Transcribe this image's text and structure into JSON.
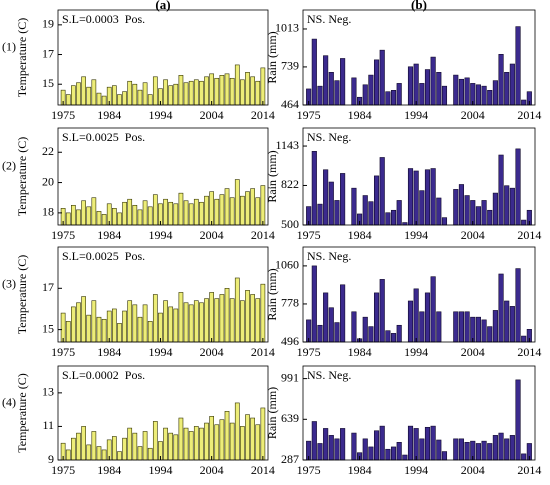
{
  "chart_data": [
    {
      "type": "bar",
      "title": "(a)",
      "label": "(1)",
      "ylabel": "Temperature (C)",
      "annotation": "S.L=0.0003  Pos.",
      "color": "#eded78",
      "edge": "#333300",
      "x": [
        1975,
        1976,
        1977,
        1978,
        1979,
        1980,
        1981,
        1982,
        1983,
        1984,
        1985,
        1986,
        1987,
        1988,
        1989,
        1990,
        1991,
        1992,
        1993,
        1994,
        1995,
        1996,
        1997,
        1998,
        1999,
        2000,
        2001,
        2002,
        2003,
        2004,
        2005,
        2006,
        2007,
        2008,
        2009,
        2010,
        2011,
        2012,
        2013,
        2014
      ],
      "values": [
        14.6,
        14.3,
        14.9,
        15.1,
        15.5,
        14.8,
        15.3,
        14.4,
        14.2,
        14.8,
        14.9,
        14.3,
        14.5,
        15.2,
        15.0,
        14.6,
        15.1,
        14.3,
        15.5,
        14.7,
        15.3,
        14.9,
        15.0,
        15.6,
        15.1,
        15.2,
        15.3,
        15.2,
        15.5,
        15.7,
        15.4,
        15.6,
        15.7,
        15.4,
        16.3,
        15.3,
        15.8,
        15.5,
        15.2,
        16.1
      ],
      "xlim": [
        1974,
        2015
      ],
      "xticks": [
        1975,
        1984,
        1994,
        2004,
        2014
      ],
      "ylim": [
        13.6,
        20
      ],
      "yticks": [
        15,
        17,
        19
      ]
    },
    {
      "type": "bar",
      "label": "(2)",
      "ylabel": "Temperature (C)",
      "annotation": "S.L=0.0025  Pos.",
      "color": "#eded78",
      "edge": "#333300",
      "x": [
        1975,
        1976,
        1977,
        1978,
        1979,
        1980,
        1981,
        1982,
        1983,
        1984,
        1985,
        1986,
        1987,
        1988,
        1989,
        1990,
        1991,
        1992,
        1993,
        1994,
        1995,
        1996,
        1997,
        1998,
        1999,
        2000,
        2001,
        2002,
        2003,
        2004,
        2005,
        2006,
        2007,
        2008,
        2009,
        2010,
        2011,
        2012,
        2013,
        2014
      ],
      "values": [
        18.3,
        18.0,
        18.5,
        18.2,
        18.8,
        18.4,
        19.0,
        18.1,
        17.9,
        18.6,
        18.3,
        18.0,
        18.7,
        18.9,
        18.5,
        18.2,
        18.8,
        18.4,
        19.2,
        18.6,
        18.9,
        18.7,
        18.6,
        19.3,
        18.8,
        18.6,
        18.9,
        18.7,
        19.1,
        19.4,
        18.9,
        19.2,
        19.6,
        19.0,
        20.2,
        19.1,
        19.4,
        19.6,
        19.0,
        19.8
      ],
      "xlim": [
        1974,
        2015
      ],
      "xticks": [
        1975,
        1984,
        1994,
        2004,
        2014
      ],
      "ylim": [
        17.2,
        23.6
      ],
      "yticks": [
        18,
        20,
        22
      ]
    },
    {
      "type": "bar",
      "label": "(3)",
      "ylabel": "Temperature (C)",
      "annotation": "S.L=0.0025  Pos.",
      "color": "#eded78",
      "edge": "#333300",
      "x": [
        1975,
        1976,
        1977,
        1978,
        1979,
        1980,
        1981,
        1982,
        1983,
        1984,
        1985,
        1986,
        1987,
        1988,
        1989,
        1990,
        1991,
        1992,
        1993,
        1994,
        1995,
        1996,
        1997,
        1998,
        1999,
        2000,
        2001,
        2002,
        2003,
        2004,
        2005,
        2006,
        2007,
        2008,
        2009,
        2010,
        2011,
        2012,
        2013,
        2014
      ],
      "values": [
        15.8,
        15.4,
        16.1,
        16.3,
        16.6,
        15.7,
        16.4,
        15.6,
        15.5,
        15.9,
        16.0,
        15.3,
        15.9,
        16.4,
        16.2,
        15.6,
        16.2,
        15.4,
        16.7,
        15.8,
        16.4,
        16.1,
        16.0,
        16.8,
        16.3,
        16.2,
        16.4,
        16.3,
        16.5,
        16.8,
        16.5,
        16.7,
        17.0,
        16.5,
        17.5,
        16.4,
        16.9,
        16.7,
        16.5,
        17.2
      ],
      "xlim": [
        1974,
        2015
      ],
      "xticks": [
        1975,
        1984,
        1994,
        2004,
        2014
      ],
      "ylim": [
        14.4,
        19
      ],
      "yticks": [
        15,
        17
      ]
    },
    {
      "type": "bar",
      "label": "(4)",
      "ylabel": "Temperature (C)",
      "annotation": "S.L=0.0002  Pos.",
      "color": "#eded78",
      "edge": "#333300",
      "x": [
        1975,
        1976,
        1977,
        1978,
        1979,
        1980,
        1981,
        1982,
        1983,
        1984,
        1985,
        1986,
        1987,
        1988,
        1989,
        1990,
        1991,
        1992,
        1993,
        1994,
        1995,
        1996,
        1997,
        1998,
        1999,
        2000,
        2001,
        2002,
        2003,
        2004,
        2005,
        2006,
        2007,
        2008,
        2009,
        2010,
        2011,
        2012,
        2013,
        2014
      ],
      "values": [
        10.0,
        9.6,
        10.3,
        10.6,
        11.0,
        9.9,
        10.7,
        9.8,
        9.6,
        10.2,
        10.4,
        9.5,
        10.3,
        10.9,
        10.6,
        9.8,
        10.7,
        9.7,
        11.3,
        10.1,
        10.9,
        10.6,
        10.5,
        11.5,
        10.9,
        10.7,
        11.0,
        10.9,
        11.2,
        11.6,
        11.1,
        11.4,
        11.9,
        11.2,
        12.4,
        11.0,
        11.7,
        11.5,
        11.1,
        12.1
      ],
      "xlim": [
        1974,
        2015
      ],
      "xticks": [
        1975,
        1984,
        1994,
        2004,
        2014
      ],
      "ylim": [
        9,
        14.6
      ],
      "yticks": [
        9,
        11,
        13
      ]
    },
    {
      "type": "bar",
      "title": "(b)",
      "ylabel": "Rain (mm)",
      "annotation": "NS. Neg.",
      "color": "#3b2a8e",
      "edge": "#10082a",
      "x": [
        1975,
        1976,
        1977,
        1978,
        1979,
        1980,
        1981,
        1982,
        1983,
        1984,
        1985,
        1986,
        1987,
        1988,
        1989,
        1990,
        1991,
        1992,
        1993,
        1994,
        1995,
        1996,
        1997,
        1998,
        1999,
        2000,
        2001,
        2002,
        2003,
        2004,
        2005,
        2006,
        2007,
        2008,
        2009,
        2010,
        2011,
        2012,
        2013,
        2014
      ],
      "values": [
        580,
        940,
        600,
        820,
        700,
        640,
        800,
        null,
        660,
        520,
        610,
        680,
        790,
        860,
        560,
        570,
        620,
        null,
        740,
        760,
        620,
        720,
        810,
        700,
        600,
        null,
        680,
        650,
        660,
        620,
        610,
        600,
        570,
        640,
        830,
        700,
        760,
        1030,
        500,
        560
      ],
      "xlim": [
        1974,
        2015
      ],
      "xticks": [
        1975,
        1984,
        1994,
        2004,
        2014
      ],
      "ylim": [
        464,
        1150
      ],
      "yticks": [
        464,
        739,
        1013
      ]
    },
    {
      "type": "bar",
      "ylabel": "Rain (mm)",
      "annotation": "NS. Neg.",
      "color": "#3b2a8e",
      "edge": "#10082a",
      "x": [
        1975,
        1976,
        1977,
        1978,
        1979,
        1980,
        1981,
        1982,
        1983,
        1984,
        1985,
        1986,
        1987,
        1988,
        1989,
        1990,
        1991,
        1992,
        1993,
        1994,
        1995,
        1996,
        1997,
        1998,
        1999,
        2000,
        2001,
        2002,
        2003,
        2004,
        2005,
        2006,
        2007,
        2008,
        2009,
        2010,
        2011,
        2012,
        2013,
        2014
      ],
      "values": [
        650,
        1100,
        670,
        950,
        850,
        700,
        920,
        null,
        800,
        590,
        740,
        690,
        900,
        1050,
        600,
        620,
        700,
        520,
        960,
        940,
        780,
        950,
        960,
        720,
        560,
        null,
        790,
        830,
        740,
        700,
        650,
        700,
        620,
        760,
        1070,
        820,
        800,
        1120,
        540,
        620
      ],
      "xlim": [
        1974,
        2015
      ],
      "xticks": [
        1975,
        1984,
        1994,
        2004,
        2014
      ],
      "ylim": [
        500,
        1290
      ],
      "yticks": [
        500,
        822,
        1143
      ]
    },
    {
      "type": "bar",
      "ylabel": "Rain (mm)",
      "annotation": "NS. Neg.",
      "color": "#3b2a8e",
      "edge": "#10082a",
      "x": [
        1975,
        1976,
        1977,
        1978,
        1979,
        1980,
        1981,
        1982,
        1983,
        1984,
        1985,
        1986,
        1987,
        1988,
        1989,
        1990,
        1991,
        1992,
        1993,
        1994,
        1995,
        1996,
        1997,
        1998,
        1999,
        2000,
        2001,
        2002,
        2003,
        2004,
        2005,
        2006,
        2007,
        2008,
        2009,
        2010,
        2011,
        2012,
        2013,
        2014
      ],
      "values": [
        660,
        1060,
        620,
        860,
        750,
        640,
        920,
        null,
        720,
        520,
        680,
        610,
        860,
        960,
        580,
        560,
        620,
        null,
        800,
        890,
        720,
        860,
        980,
        720,
        null,
        null,
        720,
        720,
        720,
        680,
        680,
        660,
        610,
        730,
        1000,
        800,
        760,
        1040,
        540,
        590
      ],
      "xlim": [
        1974,
        2015
      ],
      "xticks": [
        1975,
        1984,
        1994,
        2004,
        2014
      ],
      "ylim": [
        496,
        1200
      ],
      "yticks": [
        496,
        778,
        1060
      ]
    },
    {
      "type": "bar",
      "ylabel": "Rain (mm)",
      "annotation": "NS. Neg.",
      "color": "#3b2a8e",
      "edge": "#10082a",
      "x": [
        1975,
        1976,
        1977,
        1978,
        1979,
        1980,
        1981,
        1982,
        1983,
        1984,
        1985,
        1986,
        1987,
        1988,
        1989,
        1990,
        1991,
        1992,
        1993,
        1994,
        1995,
        1996,
        1997,
        1998,
        1999,
        2000,
        2001,
        2002,
        2003,
        2004,
        2005,
        2006,
        2007,
        2008,
        2009,
        2010,
        2011,
        2012,
        2013,
        2014
      ],
      "values": [
        450,
        620,
        430,
        560,
        500,
        470,
        560,
        null,
        520,
        350,
        470,
        400,
        540,
        580,
        380,
        400,
        440,
        330,
        580,
        560,
        470,
        570,
        580,
        460,
        360,
        null,
        470,
        470,
        440,
        450,
        430,
        450,
        430,
        500,
        520,
        470,
        500,
        980,
        340,
        430
      ],
      "xlim": [
        1974,
        2015
      ],
      "xticks": [
        1975,
        1984,
        1994,
        2004,
        2014
      ],
      "ylim": [
        287,
        1100
      ],
      "yticks": [
        287,
        639,
        991
      ]
    }
  ]
}
